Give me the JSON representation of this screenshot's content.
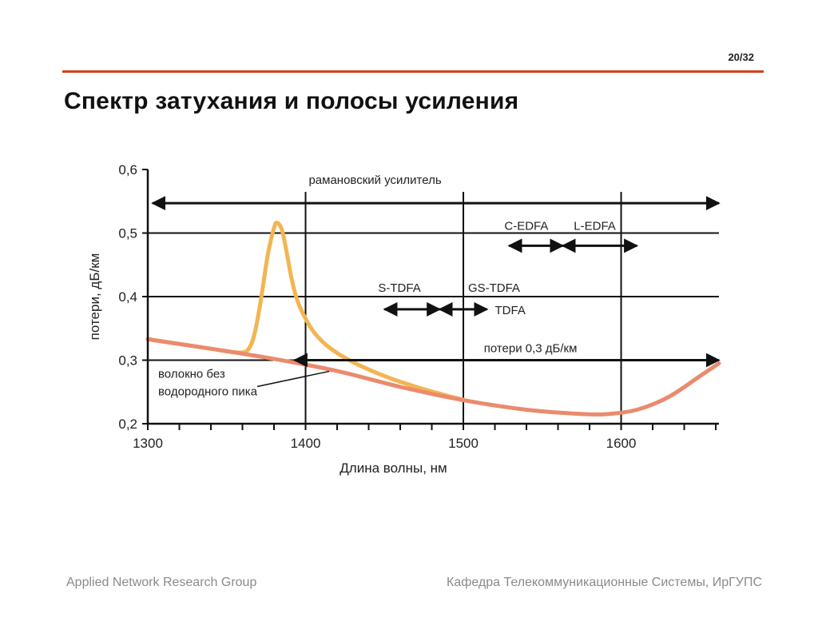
{
  "slide": {
    "number": "20/32",
    "title": "Спектр затухания и полосы усиления",
    "footer_left": "Applied Network Research Group",
    "footer_right": "Кафедра Телекоммуникационные Системы, ИрГУПС"
  },
  "colors": {
    "accent_rule": "#d0421b",
    "water_peak_curve": "#f2b552",
    "low_water_curve": "#ea8b6d",
    "axis": "#111111"
  },
  "chart_data": {
    "type": "line",
    "xlabel": "Длина волны, нм",
    "ylabel": "потери, дБ/км",
    "xlim": [
      1300,
      1662
    ],
    "ylim": [
      0.2,
      0.6
    ],
    "x_ticks": [
      1300,
      1400,
      1500,
      1600
    ],
    "x_tick_labels": [
      "1300",
      "1400",
      "1500",
      "1600"
    ],
    "y_ticks": [
      0.2,
      0.3,
      0.4,
      0.5,
      0.6
    ],
    "y_tick_labels": [
      "0,2",
      "0,3",
      "0,4",
      "0,5",
      "0,6"
    ],
    "grid": "horizontal at 0.3, 0.4, 0.5; vertical at 1400, 1500, 1600",
    "series": [
      {
        "color": "#f2b552",
        "x": [
          1300,
          1340,
          1358,
          1364,
          1368,
          1372,
          1376,
          1380,
          1382,
          1385,
          1388,
          1391,
          1394,
          1398,
          1405,
          1415,
          1430,
          1450,
          1470,
          1490,
          1500
        ],
        "y": [
          0.333,
          0.318,
          0.312,
          0.318,
          0.345,
          0.4,
          0.465,
          0.508,
          0.516,
          0.505,
          0.47,
          0.43,
          0.4,
          0.375,
          0.345,
          0.32,
          0.297,
          0.275,
          0.258,
          0.244,
          0.238
        ]
      },
      {
        "color": "#ea8b6d",
        "x": [
          1300,
          1340,
          1380,
          1420,
          1460,
          1500,
          1540,
          1570,
          1590,
          1610,
          1630,
          1650,
          1662
        ],
        "y": [
          0.333,
          0.318,
          0.302,
          0.283,
          0.258,
          0.237,
          0.222,
          0.216,
          0.215,
          0.222,
          0.242,
          0.275,
          0.295
        ]
      }
    ],
    "annotations": [
      {
        "label": "рамановский усилитель",
        "type": "double-arrow",
        "x_range": [
          1300,
          1662
        ],
        "y": 0.547
      },
      {
        "label": "C-EDFA",
        "type": "double-arrow",
        "x_range": [
          1529,
          1563
        ],
        "y": 0.48
      },
      {
        "label": "L-EDFA",
        "type": "double-arrow",
        "x_range": [
          1563,
          1610
        ],
        "y": 0.48
      },
      {
        "label": "S-TDFA",
        "type": "double-arrow",
        "x_range": [
          1450,
          1485
        ],
        "y": 0.38
      },
      {
        "label": "GS-TDFA",
        "type": "double-arrow",
        "x_range": [
          1485,
          1515
        ],
        "y": 0.38
      },
      {
        "label": "TDFA",
        "type": "text",
        "x": 1520,
        "y": 0.38
      },
      {
        "label": "потери 0,3 дБ/км",
        "type": "double-arrow",
        "x_range": [
          1393,
          1662
        ],
        "y": 0.3
      },
      {
        "label": "волокно без водородного пика",
        "lines": [
          "волокно без",
          "водородного пика"
        ],
        "type": "pointer",
        "target_x": 1415,
        "target_y": 0.285
      }
    ]
  }
}
